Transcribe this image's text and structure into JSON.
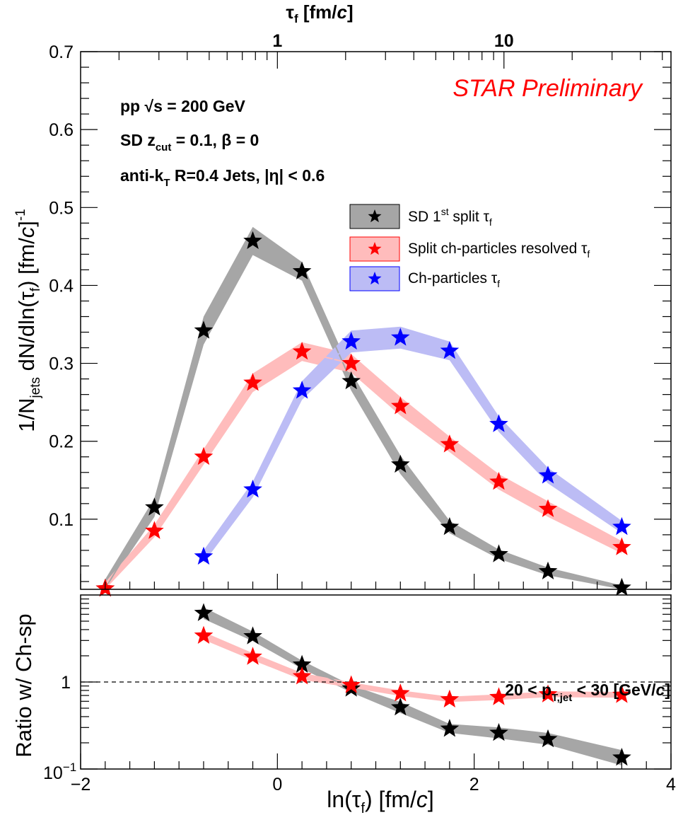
{
  "colors": {
    "sd": "#000000",
    "split": "#ff0000",
    "ch": "#0000ff",
    "sd_band": "#a6a6a6",
    "split_band": "#ffbcbc",
    "ch_band": "#bcbcf5",
    "prelim": "#ff0000"
  },
  "chart_data": [
    {
      "type": "line",
      "panel": "main",
      "title": "",
      "ylabel_parts": {
        "pre": "1/N",
        "sub_jets": "jets",
        "mid": " dN/dln(τ",
        "sub_f": "f",
        "post": ") [fm/",
        "c": "c",
        "close": "]",
        "sup": "-1"
      },
      "top_axis": {
        "label_parts": {
          "tau": "τ",
          "sub": "f",
          "unit": " [fm/",
          "c": "c",
          "close": "]"
        },
        "ticks": [
          1,
          10
        ],
        "tick_labels": [
          "1",
          "10"
        ]
      },
      "xlim": [
        -2,
        4
      ],
      "ylim": [
        0.01,
        0.7
      ],
      "yticks": [
        0.1,
        0.2,
        0.3,
        0.4,
        0.5,
        0.6,
        0.7
      ],
      "ytick_labels": [
        "0.1",
        "0.2",
        "0.3",
        "0.4",
        "0.5",
        "0.6",
        "0.7"
      ],
      "annotations": {
        "pp_energy": "pp  √s = 200 GeV",
        "sd_params": {
          "pre": "SD z",
          "sub": "cut",
          "post": " = 0.1,  β = 0"
        },
        "jets": {
          "pre": "anti-k",
          "sub": "T",
          "post": "  R=0.4 Jets, |η| < 0.6"
        },
        "preliminary": "STAR Preliminary"
      },
      "legend": {
        "placement": "right, below annotations",
        "entries": [
          {
            "key": "sd",
            "parts": {
              "a": "SD 1",
              "sup": "st",
              "b": " split τ",
              "sub": "f"
            }
          },
          {
            "key": "split",
            "parts": {
              "a": "Split ch-particles resolved τ",
              "sub": "f"
            }
          },
          {
            "key": "ch",
            "parts": {
              "a": "Ch-particles τ",
              "sub": "f"
            }
          }
        ]
      },
      "series": [
        {
          "key": "sd",
          "x": [
            -1.75,
            -1.25,
            -0.75,
            -0.25,
            0.25,
            0.75,
            1.25,
            1.75,
            2.25,
            2.75,
            3.5
          ],
          "y": [
            0.011,
            0.115,
            0.342,
            0.457,
            0.418,
            0.277,
            0.17,
            0.09,
            0.055,
            0.033,
            0.012
          ],
          "band": [
            0.012,
            0.012,
            0.018,
            0.018,
            0.012,
            0.012,
            0.012,
            0.008,
            0.006,
            0.005,
            0.003
          ]
        },
        {
          "key": "split",
          "x": [
            -1.75,
            -1.25,
            -0.75,
            -0.25,
            0.25,
            0.75,
            1.25,
            1.75,
            2.25,
            2.75,
            3.5
          ],
          "y": [
            0.011,
            0.085,
            0.18,
            0.275,
            0.315,
            0.3,
            0.245,
            0.196,
            0.148,
            0.113,
            0.064
          ],
          "band": [
            0.008,
            0.008,
            0.01,
            0.012,
            0.012,
            0.012,
            0.012,
            0.01,
            0.01,
            0.01,
            0.008
          ]
        },
        {
          "key": "ch",
          "x": [
            -0.75,
            -0.25,
            0.25,
            0.75,
            1.25,
            1.75,
            2.25,
            2.75,
            3.5
          ],
          "y": [
            0.052,
            0.138,
            0.265,
            0.328,
            0.333,
            0.316,
            0.222,
            0.156,
            0.09
          ],
          "band": [
            0.008,
            0.01,
            0.012,
            0.014,
            0.014,
            0.012,
            0.01,
            0.01,
            0.008
          ]
        }
      ]
    },
    {
      "type": "line",
      "panel": "ratio",
      "ylabel": "Ratio w/ Ch-sp",
      "xlabel_parts": {
        "pre": "ln(τ",
        "sub": "f",
        "post": ") [fm/",
        "c": "c",
        "close": "]"
      },
      "xlim": [
        -2,
        4
      ],
      "xticks": [
        -2,
        0,
        2,
        4
      ],
      "xtick_labels": [
        "−2",
        "0",
        "2",
        "4"
      ],
      "y_scale": "log",
      "ylim": [
        0.1,
        10
      ],
      "ytick_labels": {
        "base": "10",
        "exp": "−1",
        "one": "1"
      },
      "reference_line": 1,
      "annotation": {
        "pre": "20 < p",
        "sub": "T,jet",
        "post": " < 30 [GeV/",
        "c": "c",
        "close": "]"
      },
      "series": [
        {
          "key": "sd",
          "x": [
            -0.75,
            -0.25,
            0.25,
            0.75,
            1.25,
            1.75,
            2.25,
            2.75,
            3.5
          ],
          "y": [
            6.2,
            3.35,
            1.58,
            0.84,
            0.51,
            0.29,
            0.26,
            0.22,
            0.135
          ],
          "band_lo": [
            5.3,
            2.95,
            1.42,
            0.76,
            0.44,
            0.26,
            0.225,
            0.19,
            0.11
          ],
          "band_hi": [
            7.2,
            3.8,
            1.76,
            0.92,
            0.59,
            0.33,
            0.3,
            0.26,
            0.165
          ]
        },
        {
          "key": "split",
          "x": [
            -0.75,
            -0.25,
            0.25,
            0.75,
            1.25,
            1.75,
            2.25,
            2.75,
            3.5
          ],
          "y": [
            3.4,
            1.95,
            1.16,
            0.92,
            0.74,
            0.63,
            0.67,
            0.72,
            0.71
          ],
          "band_lo": [
            3.05,
            1.78,
            1.06,
            0.86,
            0.69,
            0.59,
            0.62,
            0.67,
            0.66
          ],
          "band_hi": [
            3.75,
            2.15,
            1.27,
            0.99,
            0.8,
            0.68,
            0.72,
            0.78,
            0.77
          ]
        }
      ]
    }
  ]
}
